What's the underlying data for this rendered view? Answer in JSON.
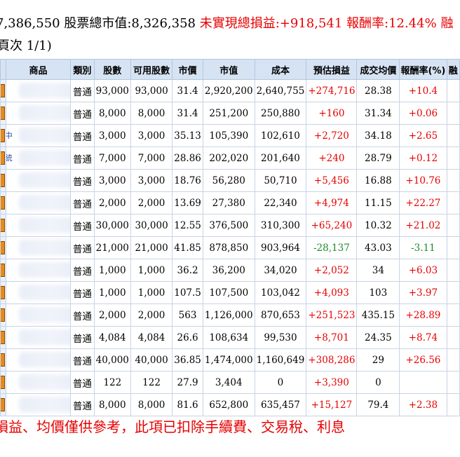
{
  "summary": {
    "part1": "7,386,550 股票總市值:8,326,358",
    "part2": " 未實現總損益:+918,541 報酬率:12.44% 融"
  },
  "pager": "頁次 1/1)",
  "columns": {
    "product": "商品",
    "type": "類別",
    "shares": "股數",
    "avail": "可用股數",
    "price": "市價",
    "value": "市值",
    "cost": "成本",
    "pnl": "預估損益",
    "avg": "成交均價",
    "ret": "報酬率(%)",
    "extra": "融"
  },
  "rows": [
    {
      "name": "",
      "type": "普通",
      "shares": "93,000",
      "avail": "93,000",
      "price": "31.4",
      "value": "2,920,200",
      "cost": "2,640,755",
      "pnl": "+274,716",
      "avg": "28.38",
      "ret": "+10.4",
      "sign": "pos"
    },
    {
      "name": "",
      "type": "普通",
      "shares": "8,000",
      "avail": "8,000",
      "price": "31.4",
      "value": "251,200",
      "cost": "250,880",
      "pnl": "+160",
      "avg": "31.34",
      "ret": "+0.06",
      "sign": "pos"
    },
    {
      "name": "中",
      "type": "普通",
      "shares": "3,000",
      "avail": "3,000",
      "price": "35.13",
      "value": "105,390",
      "cost": "102,610",
      "pnl": "+2,720",
      "avg": "34.18",
      "ret": "+2.65",
      "sign": "pos"
    },
    {
      "name": "統",
      "type": "普通",
      "shares": "7,000",
      "avail": "7,000",
      "price": "28.86",
      "value": "202,020",
      "cost": "201,640",
      "pnl": "+240",
      "avg": "28.79",
      "ret": "+0.12",
      "sign": "pos"
    },
    {
      "name": "",
      "type": "普通",
      "shares": "3,000",
      "avail": "3,000",
      "price": "18.76",
      "value": "56,280",
      "cost": "50,710",
      "pnl": "+5,456",
      "avg": "16.88",
      "ret": "+10.76",
      "sign": "pos"
    },
    {
      "name": "",
      "type": "普通",
      "shares": "2,000",
      "avail": "2,000",
      "price": "13.69",
      "value": "27,380",
      "cost": "22,340",
      "pnl": "+4,974",
      "avg": "11.15",
      "ret": "+22.27",
      "sign": "pos"
    },
    {
      "name": "",
      "type": "普通",
      "shares": "30,000",
      "avail": "30,000",
      "price": "12.55",
      "value": "376,500",
      "cost": "310,300",
      "pnl": "+65,240",
      "avg": "10.32",
      "ret": "+21.02",
      "sign": "pos"
    },
    {
      "name": "",
      "type": "普通",
      "shares": "21,000",
      "avail": "21,000",
      "price": "41.85",
      "value": "878,850",
      "cost": "903,964",
      "pnl": "-28,137",
      "avg": "43.03",
      "ret": "-3.11",
      "sign": "neg"
    },
    {
      "name": "",
      "type": "普通",
      "shares": "1,000",
      "avail": "1,000",
      "price": "36.2",
      "value": "36,200",
      "cost": "34,020",
      "pnl": "+2,052",
      "avg": "34",
      "ret": "+6.03",
      "sign": "pos"
    },
    {
      "name": "",
      "type": "普通",
      "shares": "1,000",
      "avail": "1,000",
      "price": "107.5",
      "value": "107,500",
      "cost": "103,042",
      "pnl": "+4,093",
      "avg": "103",
      "ret": "+3.97",
      "sign": "pos"
    },
    {
      "name": "",
      "type": "普通",
      "shares": "2,000",
      "avail": "2,000",
      "price": "563",
      "value": "1,126,000",
      "cost": "870,653",
      "pnl": "+251,523",
      "avg": "435.15",
      "ret": "+28.89",
      "sign": "pos"
    },
    {
      "name": "",
      "type": "普通",
      "shares": "4,084",
      "avail": "4,084",
      "price": "26.6",
      "value": "108,634",
      "cost": "99,530",
      "pnl": "+8,701",
      "avg": "24.35",
      "ret": "+8.74",
      "sign": "pos"
    },
    {
      "name": "",
      "type": "普通",
      "shares": "40,000",
      "avail": "40,000",
      "price": "36.85",
      "value": "1,474,000",
      "cost": "1,160,649",
      "pnl": "+308,286",
      "avg": "29",
      "ret": "+26.56",
      "sign": "pos"
    },
    {
      "name": "",
      "type": "普通",
      "shares": "122",
      "avail": "122",
      "price": "27.9",
      "value": "3,404",
      "cost": "0",
      "pnl": "+3,390",
      "avg": "0",
      "ret": "",
      "sign": "pos"
    },
    {
      "name": "",
      "type": "普通",
      "shares": "8,000",
      "avail": "8,000",
      "price": "81.6",
      "value": "652,800",
      "cost": "635,457",
      "pnl": "+15,127",
      "avg": "79.4",
      "ret": "+2.38",
      "sign": "pos"
    }
  ],
  "footer": "損益、均價僅供參考，此項已扣除手續費、交易稅、利息",
  "colors": {
    "positive": "#e60000",
    "negative": "#1a8a2a",
    "header_bg": "#d6e3f3",
    "action_icon": "#e88a1a"
  }
}
